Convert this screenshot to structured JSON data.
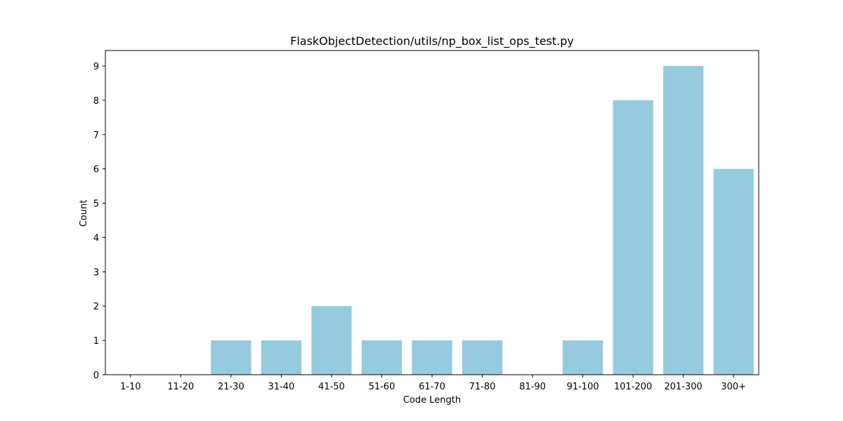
{
  "chart_data": {
    "type": "bar",
    "title": "FlaskObjectDetection/utils/np_box_list_ops_test.py",
    "xlabel": "Code Length",
    "ylabel": "Count",
    "categories": [
      "1-10",
      "11-20",
      "21-30",
      "31-40",
      "41-50",
      "51-60",
      "61-70",
      "71-80",
      "81-90",
      "91-100",
      "101-200",
      "201-300",
      "300+"
    ],
    "values": [
      0,
      0,
      1,
      1,
      2,
      1,
      1,
      1,
      0,
      1,
      8,
      9,
      6
    ],
    "yticks": [
      "0",
      "1",
      "2",
      "3",
      "4",
      "5",
      "6",
      "7",
      "8",
      "9"
    ],
    "ylim": [
      0,
      9.45
    ],
    "bar_color": "#96cade",
    "grid": false,
    "legend": "none"
  }
}
